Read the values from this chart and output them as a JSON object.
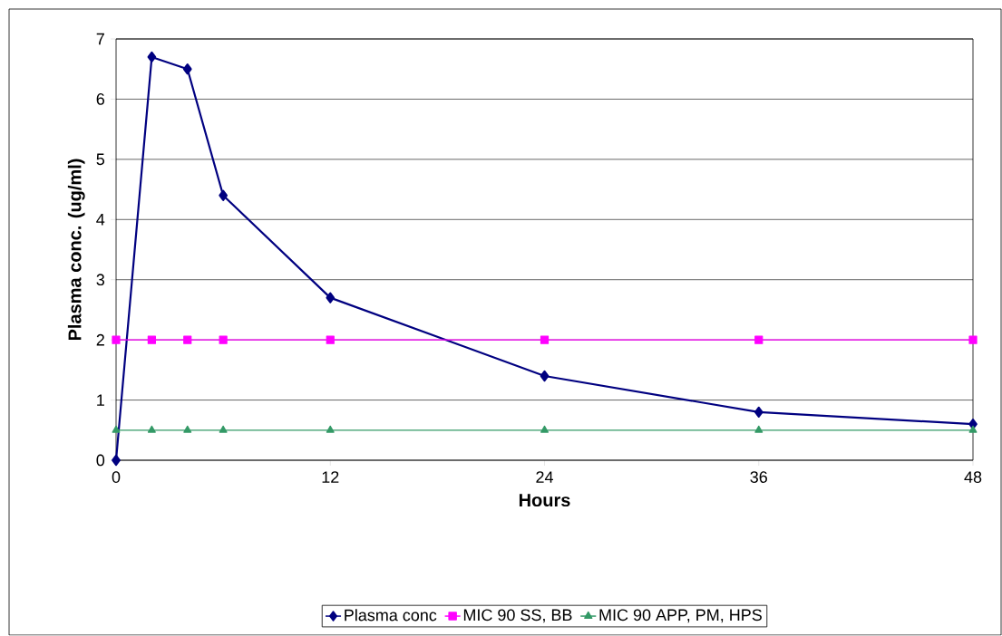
{
  "chart_data": {
    "type": "line",
    "xlabel": "Hours",
    "ylabel": "Plasma conc. (ug/ml)",
    "x": [
      0,
      2,
      4,
      6,
      12,
      24,
      36,
      48
    ],
    "series": [
      {
        "name": "Plasma conc",
        "color": "#000080",
        "marker": "diamond",
        "values": [
          0,
          6.7,
          6.5,
          4.4,
          2.7,
          1.4,
          0.8,
          0.6
        ]
      },
      {
        "name": "MIC 90 SS, BB",
        "color": "#ff00ff",
        "marker": "square",
        "values": [
          2,
          2,
          2,
          2,
          2,
          2,
          2,
          2
        ]
      },
      {
        "name": "MIC 90 APP, PM, HPS",
        "color": "#339966",
        "marker": "triangle",
        "values": [
          0.5,
          0.5,
          0.5,
          0.5,
          0.5,
          0.5,
          0.5,
          0.5
        ]
      }
    ],
    "xlim": [
      0,
      48
    ],
    "xticks": [
      0,
      12,
      24,
      36,
      48
    ],
    "ylim": [
      0,
      7
    ],
    "yticks": [
      0,
      1,
      2,
      3,
      4,
      5,
      6,
      7
    ],
    "grid": "y",
    "legend": "bottom",
    "line_style": "solid"
  }
}
